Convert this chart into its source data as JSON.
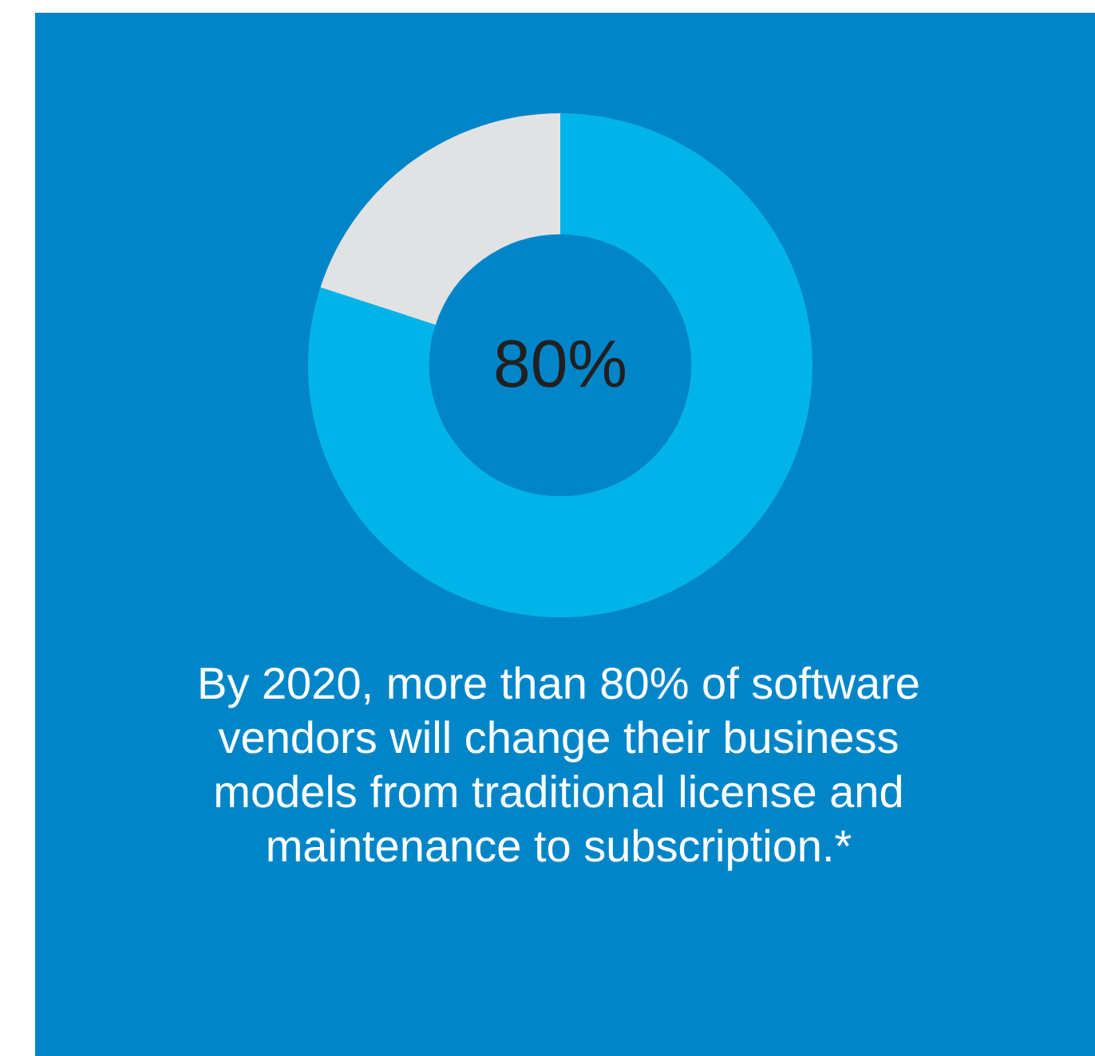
{
  "chart_data": {
    "type": "donut",
    "categories": [
      null,
      null
    ],
    "values": [
      80,
      20
    ],
    "colors": [
      "#00b4e9",
      "#e1e2e4"
    ],
    "annotations": [
      "80%",
      "By 2020, more than 80% of software vendors will change their business models from traditional license and maintenance to subscription.*"
    ]
  }
}
